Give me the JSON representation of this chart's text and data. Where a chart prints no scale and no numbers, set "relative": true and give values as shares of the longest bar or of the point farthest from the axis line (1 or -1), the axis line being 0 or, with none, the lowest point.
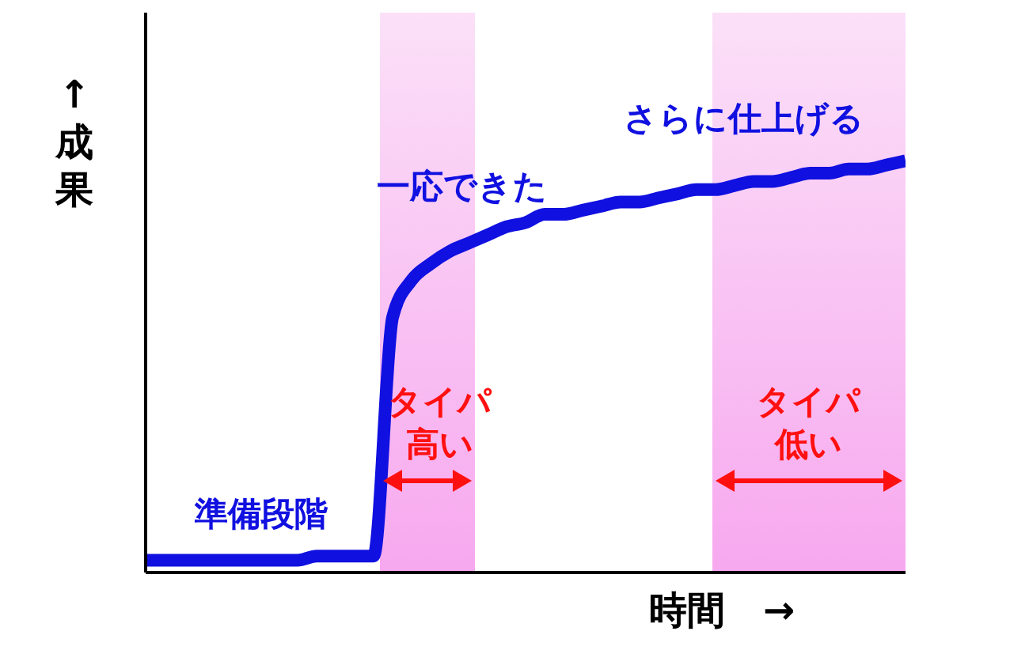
{
  "chart_data": {
    "type": "line",
    "relative": true,
    "xlabel": "時間　→",
    "ylabel": "↑成果",
    "categories": [
      null,
      null,
      null,
      null,
      null,
      null,
      null,
      null,
      null,
      null,
      null,
      null,
      null,
      null,
      null,
      null,
      null,
      null,
      null,
      null,
      null,
      null,
      null,
      null,
      null,
      null,
      null,
      null,
      null,
      null,
      null,
      null,
      null,
      null,
      null,
      null,
      null,
      null,
      null,
      null,
      null
    ],
    "series": [
      {
        "color": "#1010e0",
        "values": [
          0.03,
          0.03,
          0.03,
          0.03,
          0.03,
          0.03,
          0.03,
          0.03,
          0.03,
          0.04,
          0.04,
          0.04,
          0.04,
          0.62,
          0.71,
          0.75,
          0.78,
          0.8,
          0.82,
          0.84,
          0.85,
          0.87,
          0.87,
          0.88,
          0.89,
          0.9,
          0.9,
          0.91,
          0.92,
          0.93,
          0.93,
          0.94,
          0.95,
          0.95,
          0.96,
          0.97,
          0.97,
          0.98,
          0.98,
          0.99,
          1
        ]
      }
    ],
    "annotations": [
      "一応できた",
      "さらに仕上げる",
      "準備段階",
      "タイパ高い",
      "タイパ低い"
    ],
    "marker": "none"
  }
}
